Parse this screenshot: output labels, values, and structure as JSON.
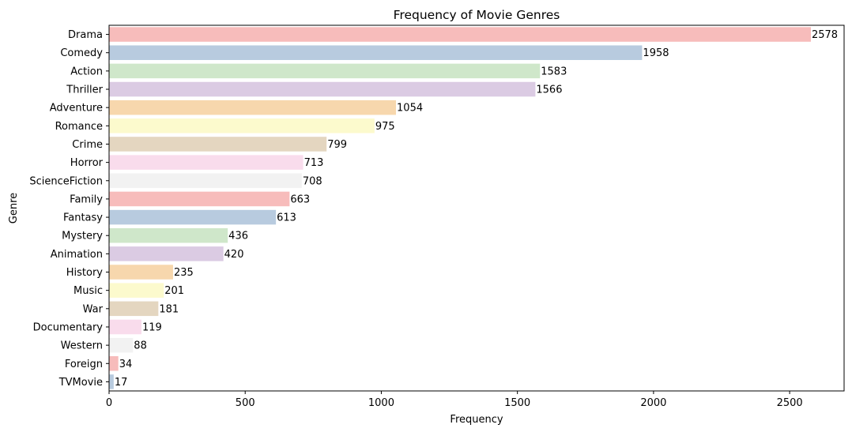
{
  "chart_data": {
    "type": "bar",
    "orientation": "horizontal",
    "title": "Frequency of Movie Genres",
    "xlabel": "Frequency",
    "ylabel": "Genre",
    "xlim": [
      0,
      2700
    ],
    "xticks": [
      0,
      500,
      1000,
      1500,
      2000,
      2500
    ],
    "grid": false,
    "categories": [
      "Drama",
      "Comedy",
      "Action",
      "Thriller",
      "Adventure",
      "Romance",
      "Crime",
      "Horror",
      "ScienceFiction",
      "Family",
      "Fantasy",
      "Mystery",
      "Animation",
      "History",
      "Music",
      "War",
      "Documentary",
      "Western",
      "Foreign",
      "TVMovie"
    ],
    "values": [
      2578,
      1958,
      1583,
      1566,
      1054,
      975,
      799,
      713,
      708,
      663,
      613,
      436,
      420,
      235,
      201,
      181,
      119,
      88,
      34,
      17
    ],
    "palette": [
      "#f7bcbb",
      "#b8cbdf",
      "#cfe7ca",
      "#dbcbe3",
      "#f7d7ad",
      "#fcfacd",
      "#e4d6c0",
      "#f9dcec",
      "#f2f2f2"
    ]
  }
}
